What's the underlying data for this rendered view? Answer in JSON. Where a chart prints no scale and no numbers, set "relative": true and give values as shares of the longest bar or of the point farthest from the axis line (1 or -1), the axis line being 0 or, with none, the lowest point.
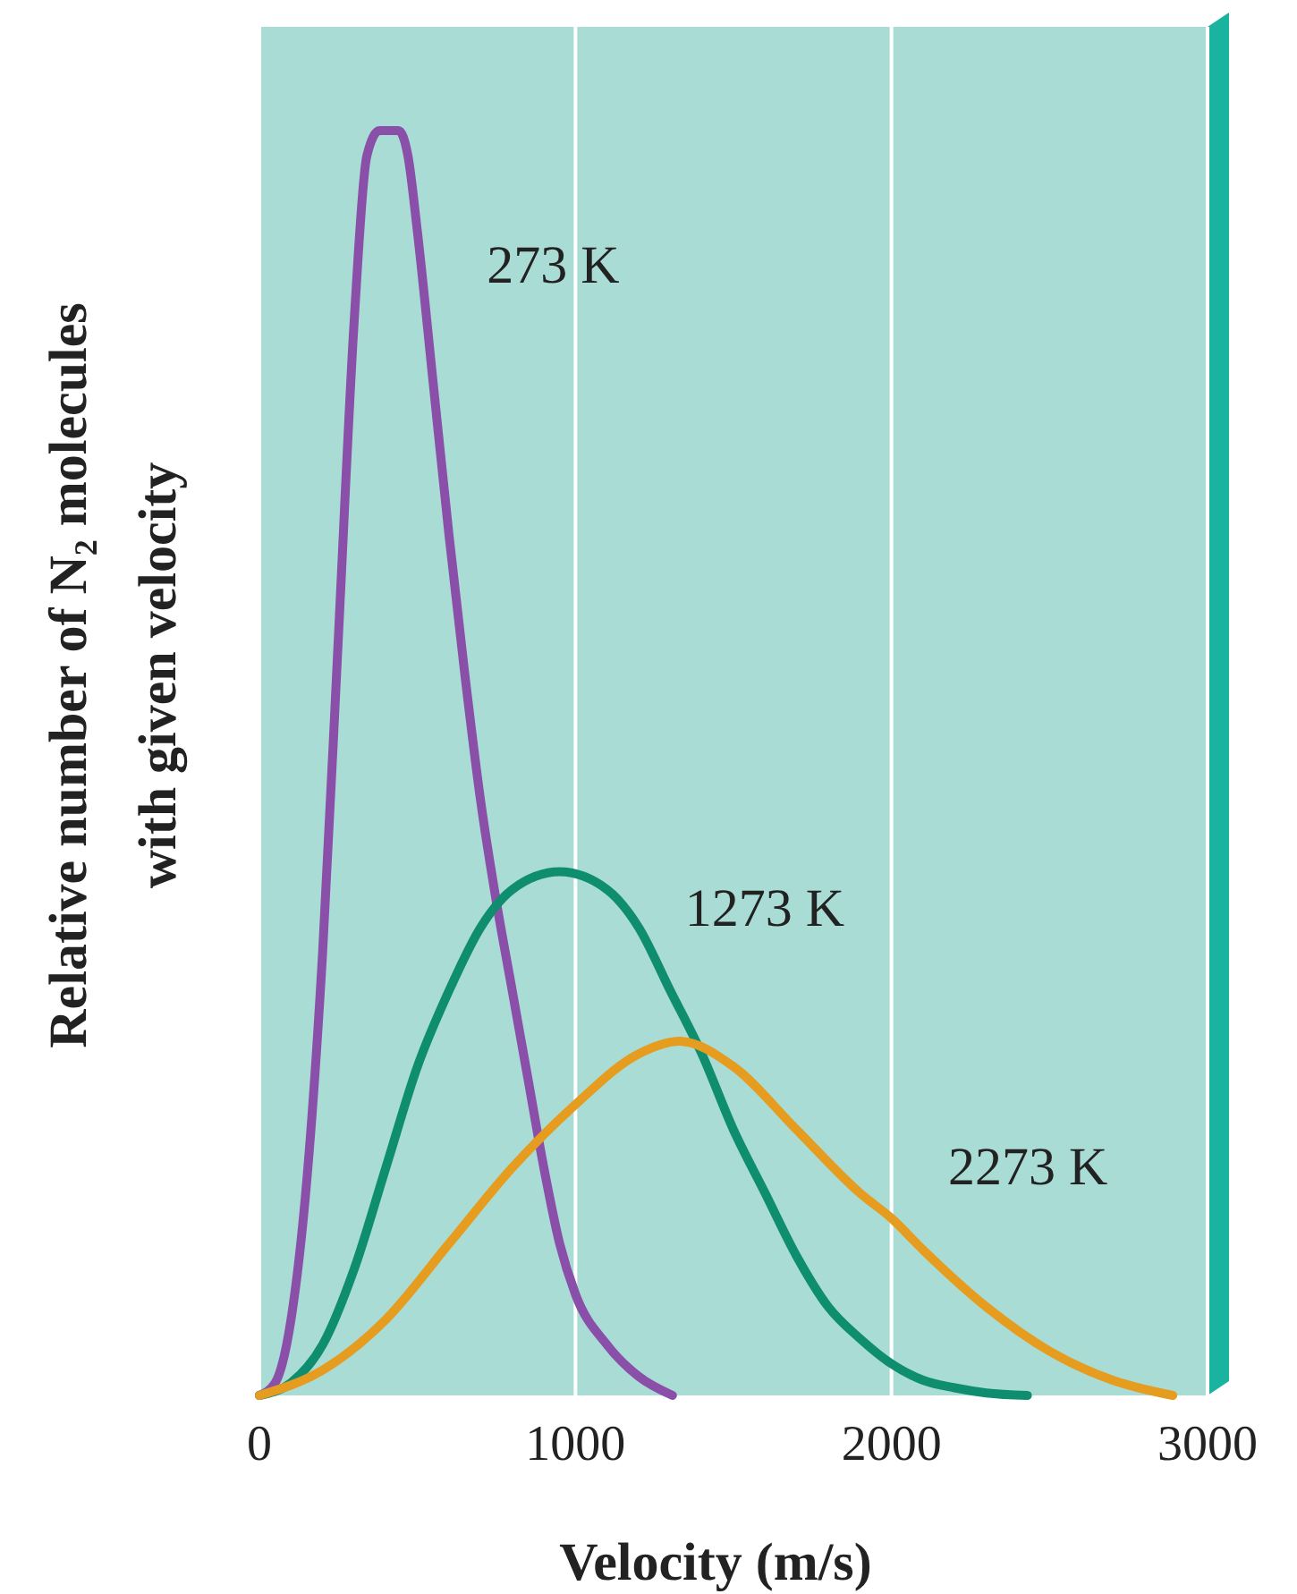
{
  "chart_data": {
    "type": "line",
    "relative": true,
    "xlabel": "Velocity (m/s)",
    "ylabel": "Relative number of N₂ molecules with given velocity",
    "xlim": [
      0,
      3000
    ],
    "xticks": [
      0,
      1000,
      2000,
      3000
    ],
    "grid": "x",
    "series": [
      {
        "name": "273 K",
        "color": "#8a4fa8",
        "x": [
          0,
          50,
          100,
          150,
          200,
          250,
          300,
          340,
          380,
          440,
          470,
          500,
          550,
          600,
          650,
          700,
          750,
          800,
          850,
          900,
          950,
          1000,
          1100,
          1200,
          1307
        ],
        "values": [
          0,
          0.01,
          0.06,
          0.17,
          0.35,
          0.6,
          0.85,
          0.98,
          1,
          1,
          0.98,
          0.92,
          0.8,
          0.68,
          0.57,
          0.47,
          0.39,
          0.32,
          0.25,
          0.18,
          0.12,
          0.08,
          0.04,
          0.015,
          0
        ]
      },
      {
        "name": "1273 K",
        "color": "#0e8e6e",
        "x": [
          0,
          100,
          200,
          300,
          400,
          500,
          600,
          700,
          800,
          950,
          1100,
          1200,
          1300,
          1400,
          1500,
          1600,
          1700,
          1800,
          1900,
          2000,
          2100,
          2200,
          2300,
          2430
        ],
        "values": [
          0,
          0.01,
          0.04,
          0.1,
          0.18,
          0.26,
          0.32,
          0.37,
          0.4,
          0.414,
          0.4,
          0.37,
          0.32,
          0.27,
          0.21,
          0.16,
          0.11,
          0.07,
          0.045,
          0.025,
          0.012,
          0.006,
          0.002,
          0
        ]
      },
      {
        "name": "2273 K",
        "color": "#e59c1f",
        "x": [
          0,
          200,
          400,
          600,
          800,
          1000,
          1200,
          1330,
          1500,
          1700,
          1900,
          2000,
          2100,
          2300,
          2500,
          2700,
          2890
        ],
        "values": [
          0,
          0.02,
          0.06,
          0.12,
          0.18,
          0.23,
          0.27,
          0.28,
          0.26,
          0.21,
          0.16,
          0.14,
          0.115,
          0.07,
          0.035,
          0.012,
          0
        ]
      }
    ]
  }
}
